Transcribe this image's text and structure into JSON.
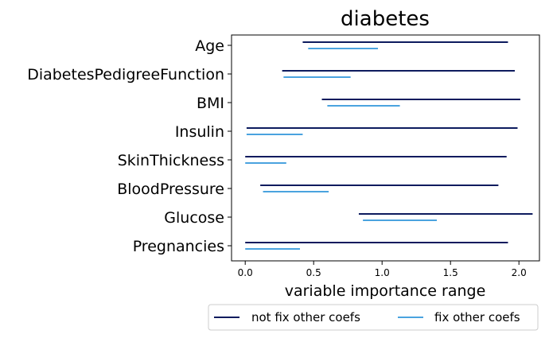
{
  "chart_data": {
    "type": "range",
    "title": "diabetes",
    "xlabel": "variable importance range",
    "ylabel": "",
    "xlim": [
      -0.1,
      2.15
    ],
    "xticks": [
      0.0,
      0.5,
      1.0,
      1.5,
      2.0
    ],
    "xtick_labels": [
      "0.0",
      "0.5",
      "1.0",
      "1.5",
      "2.0"
    ],
    "categories": [
      "Age",
      "DiabetesPedigreeFunction",
      "BMI",
      "Insulin",
      "SkinThickness",
      "BloodPressure",
      "Glucose",
      "Pregnancies"
    ],
    "series": [
      {
        "name": "not fix other coefs",
        "color": "#0d1b5e",
        "ranges": [
          [
            0.42,
            1.92
          ],
          [
            0.27,
            1.97
          ],
          [
            0.56,
            2.01
          ],
          [
            0.01,
            1.99
          ],
          [
            0.0,
            1.91
          ],
          [
            0.11,
            1.85
          ],
          [
            0.83,
            2.1
          ],
          [
            0.0,
            1.92
          ]
        ]
      },
      {
        "name": "fix other coefs",
        "color": "#4aa3df",
        "ranges": [
          [
            0.46,
            0.97
          ],
          [
            0.28,
            0.77
          ],
          [
            0.6,
            1.13
          ],
          [
            0.01,
            0.42
          ],
          [
            0.0,
            0.3
          ],
          [
            0.13,
            0.61
          ],
          [
            0.86,
            1.4
          ],
          [
            0.0,
            0.4
          ]
        ]
      }
    ],
    "legend": {
      "placement": "bottom-center",
      "entries": [
        "not fix other coefs",
        "fix other coefs"
      ]
    }
  }
}
